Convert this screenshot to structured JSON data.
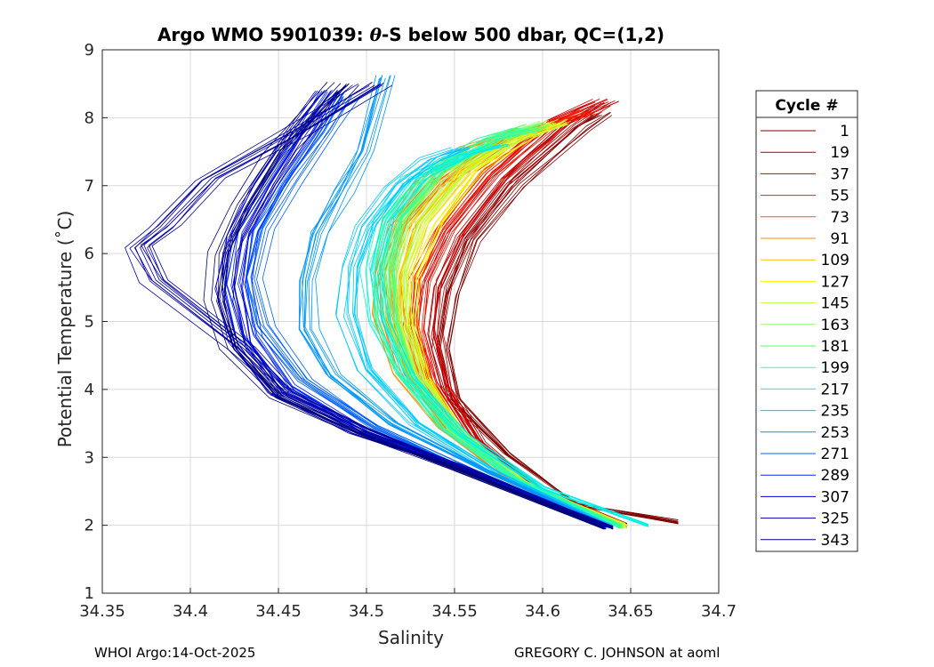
{
  "chart_data": {
    "type": "line",
    "title_prefix": "Argo WMO 5901039: ",
    "title_theta": "θ",
    "title_suffix": "-S below 500 dbar,  QC=(1,2)",
    "xlabel": "Salinity",
    "ylabel": "Potential Temperature (˚C)",
    "xlim": [
      34.35,
      34.7
    ],
    "ylim": [
      1,
      9
    ],
    "x_ticks": [
      34.35,
      34.4,
      34.45,
      34.5,
      34.55,
      34.6,
      34.65,
      34.7
    ],
    "x_tick_labels": [
      "34.35",
      "34.4",
      "34.45",
      "34.5",
      "34.55",
      "34.6",
      "34.65",
      "34.7"
    ],
    "y_ticks": [
      1,
      2,
      3,
      4,
      5,
      6,
      7,
      8,
      9
    ],
    "y_tick_labels": [
      "1",
      "2",
      "3",
      "4",
      "5",
      "6",
      "7",
      "8",
      "9"
    ],
    "grid": true,
    "legend": {
      "title": "Cycle #",
      "position": "right-outside",
      "entries": [
        {
          "label": "1",
          "color": "#800000"
        },
        {
          "label": "19",
          "color": "#b00000"
        },
        {
          "label": "37",
          "color": "#d40000"
        },
        {
          "label": "55",
          "color": "#ff1f00"
        },
        {
          "label": "73",
          "color": "#ff5500"
        },
        {
          "label": "91",
          "color": "#ff8a00"
        },
        {
          "label": "109",
          "color": "#ffbf00"
        },
        {
          "label": "127",
          "color": "#f4f400"
        },
        {
          "label": "145",
          "color": "#c2ff3c"
        },
        {
          "label": "163",
          "color": "#8cff72"
        },
        {
          "label": "181",
          "color": "#5aff5a"
        },
        {
          "label": "199",
          "color": "#2effb0"
        },
        {
          "label": "217",
          "color": "#00f0e6"
        },
        {
          "label": "235",
          "color": "#00c8ff"
        },
        {
          "label": "253",
          "color": "#0096ff"
        },
        {
          "label": "271",
          "color": "#0060ff"
        },
        {
          "label": "289",
          "color": "#0028ff"
        },
        {
          "label": "307",
          "color": "#0000d2"
        },
        {
          "label": "325",
          "color": "#0000a0"
        },
        {
          "label": "343",
          "color": "#000078"
        }
      ]
    },
    "series": [
      {
        "name": "1",
        "color": "#800000",
        "points": [
          [
            34.677,
            2.05
          ],
          [
            34.62,
            2.3
          ],
          [
            34.58,
            3.05
          ],
          [
            34.55,
            3.85
          ],
          [
            34.543,
            4.6
          ],
          [
            34.548,
            5.4
          ],
          [
            34.56,
            6.2
          ],
          [
            34.585,
            7.0
          ],
          [
            34.622,
            7.85
          ],
          [
            34.635,
            8.05
          ]
        ]
      },
      {
        "name": "19",
        "color": "#b00000",
        "points": [
          [
            34.648,
            2.0
          ],
          [
            34.6,
            2.5
          ],
          [
            34.565,
            3.2
          ],
          [
            34.545,
            4.0
          ],
          [
            34.537,
            4.8
          ],
          [
            34.54,
            5.5
          ],
          [
            34.553,
            6.25
          ],
          [
            34.578,
            7.1
          ],
          [
            34.612,
            7.9
          ],
          [
            34.632,
            8.2
          ]
        ]
      },
      {
        "name": "37",
        "color": "#d40000",
        "points": [
          [
            34.645,
            2.0
          ],
          [
            34.595,
            2.55
          ],
          [
            34.56,
            3.3
          ],
          [
            34.542,
            4.1
          ],
          [
            34.533,
            4.9
          ],
          [
            34.536,
            5.6
          ],
          [
            34.55,
            6.35
          ],
          [
            34.575,
            7.15
          ],
          [
            34.61,
            7.95
          ],
          [
            34.638,
            8.25
          ]
        ]
      },
      {
        "name": "55",
        "color": "#ff1f00",
        "points": [
          [
            34.643,
            2.0
          ],
          [
            34.59,
            2.6
          ],
          [
            34.555,
            3.35
          ],
          [
            34.537,
            4.1
          ],
          [
            34.529,
            4.9
          ],
          [
            34.531,
            5.6
          ],
          [
            34.545,
            6.35
          ],
          [
            34.57,
            7.2
          ],
          [
            34.605,
            7.9
          ],
          [
            34.628,
            8.1
          ]
        ]
      },
      {
        "name": "73",
        "color": "#ff5500",
        "points": [
          [
            34.645,
            2.0
          ],
          [
            34.585,
            2.65
          ],
          [
            34.548,
            3.4
          ],
          [
            34.525,
            4.2
          ],
          [
            34.515,
            5.0
          ],
          [
            34.512,
            5.7
          ],
          [
            34.52,
            6.35
          ],
          [
            34.54,
            7.0
          ],
          [
            34.572,
            7.6
          ],
          [
            34.6,
            7.85
          ]
        ]
      },
      {
        "name": "91",
        "color": "#ff8a00",
        "points": [
          [
            34.643,
            2.0
          ],
          [
            34.58,
            2.7
          ],
          [
            34.543,
            3.45
          ],
          [
            34.52,
            4.25
          ],
          [
            34.51,
            5.1
          ],
          [
            34.51,
            5.8
          ],
          [
            34.518,
            6.45
          ],
          [
            34.535,
            7.05
          ],
          [
            34.56,
            7.55
          ],
          [
            34.59,
            7.85
          ]
        ]
      },
      {
        "name": "109",
        "color": "#ffbf00",
        "points": [
          [
            34.646,
            2.0
          ],
          [
            34.588,
            2.65
          ],
          [
            34.55,
            3.4
          ],
          [
            34.53,
            4.2
          ],
          [
            34.52,
            5.0
          ],
          [
            34.522,
            5.75
          ],
          [
            34.532,
            6.45
          ],
          [
            34.555,
            7.2
          ],
          [
            34.585,
            7.7
          ],
          [
            34.605,
            7.9
          ]
        ]
      },
      {
        "name": "127",
        "color": "#f4f400",
        "points": [
          [
            34.647,
            2.0
          ],
          [
            34.59,
            2.62
          ],
          [
            34.553,
            3.38
          ],
          [
            34.533,
            4.15
          ],
          [
            34.524,
            4.95
          ],
          [
            34.526,
            5.7
          ],
          [
            34.538,
            6.45
          ],
          [
            34.562,
            7.25
          ],
          [
            34.592,
            7.75
          ],
          [
            34.61,
            7.95
          ]
        ]
      },
      {
        "name": "145",
        "color": "#c2ff3c",
        "points": [
          [
            34.648,
            1.98
          ],
          [
            34.59,
            2.62
          ],
          [
            34.552,
            3.38
          ],
          [
            34.53,
            4.15
          ],
          [
            34.52,
            4.95
          ],
          [
            34.518,
            5.7
          ],
          [
            34.528,
            6.45
          ],
          [
            34.552,
            7.2
          ],
          [
            34.585,
            7.7
          ],
          [
            34.608,
            7.9
          ]
        ]
      },
      {
        "name": "163",
        "color": "#8cff72",
        "points": [
          [
            34.646,
            1.98
          ],
          [
            34.588,
            2.64
          ],
          [
            34.549,
            3.4
          ],
          [
            34.527,
            4.2
          ],
          [
            34.516,
            5.0
          ],
          [
            34.514,
            5.75
          ],
          [
            34.522,
            6.5
          ],
          [
            34.545,
            7.25
          ],
          [
            34.578,
            7.75
          ],
          [
            34.6,
            7.92
          ]
        ]
      },
      {
        "name": "181",
        "color": "#5aff5a",
        "points": [
          [
            34.645,
            1.98
          ],
          [
            34.586,
            2.66
          ],
          [
            34.546,
            3.42
          ],
          [
            34.523,
            4.22
          ],
          [
            34.512,
            5.0
          ],
          [
            34.51,
            5.75
          ],
          [
            34.517,
            6.5
          ],
          [
            34.54,
            7.2
          ],
          [
            34.575,
            7.7
          ],
          [
            34.598,
            7.88
          ]
        ]
      },
      {
        "name": "199",
        "color": "#2effb0",
        "points": [
          [
            34.644,
            1.98
          ],
          [
            34.584,
            2.67
          ],
          [
            34.544,
            3.44
          ],
          [
            34.52,
            4.25
          ],
          [
            34.509,
            5.05
          ],
          [
            34.507,
            5.8
          ],
          [
            34.514,
            6.5
          ],
          [
            34.535,
            7.2
          ],
          [
            34.568,
            7.68
          ],
          [
            34.59,
            7.82
          ]
        ]
      },
      {
        "name": "217",
        "color": "#00f0e6",
        "points": [
          [
            34.66,
            2.0
          ],
          [
            34.6,
            2.55
          ],
          [
            34.556,
            3.3
          ],
          [
            34.525,
            4.15
          ],
          [
            34.508,
            5.0
          ],
          [
            34.503,
            5.75
          ],
          [
            34.51,
            6.5
          ],
          [
            34.528,
            7.1
          ],
          [
            34.555,
            7.45
          ],
          [
            34.575,
            7.6
          ]
        ]
      },
      {
        "name": "235",
        "color": "#00c8ff",
        "points": [
          [
            34.64,
            1.98
          ],
          [
            34.575,
            2.75
          ],
          [
            34.528,
            3.5
          ],
          [
            34.5,
            4.3
          ],
          [
            34.49,
            5.1
          ],
          [
            34.492,
            5.8
          ],
          [
            34.5,
            6.4
          ],
          [
            34.517,
            7.0
          ],
          [
            34.538,
            7.4
          ],
          [
            34.555,
            7.55
          ]
        ]
      },
      {
        "name": "253",
        "color": "#0096ff",
        "points": [
          [
            34.638,
            1.98
          ],
          [
            34.568,
            2.8
          ],
          [
            34.515,
            3.5
          ],
          [
            34.48,
            4.2
          ],
          [
            34.465,
            4.9
          ],
          [
            34.465,
            5.6
          ],
          [
            34.472,
            6.3
          ],
          [
            34.485,
            6.9
          ],
          [
            34.498,
            7.5
          ],
          [
            34.51,
            8.6
          ]
        ]
      },
      {
        "name": "271",
        "color": "#0060ff",
        "points": [
          [
            34.637,
            1.98
          ],
          [
            34.56,
            2.8
          ],
          [
            34.505,
            3.45
          ],
          [
            34.465,
            4.15
          ],
          [
            34.442,
            4.95
          ],
          [
            34.436,
            5.65
          ],
          [
            34.442,
            6.35
          ],
          [
            34.458,
            7.05
          ],
          [
            34.478,
            7.8
          ],
          [
            34.49,
            8.3
          ]
        ]
      },
      {
        "name": "289",
        "color": "#0028ff",
        "points": [
          [
            34.636,
            1.98
          ],
          [
            34.555,
            2.82
          ],
          [
            34.498,
            3.4
          ],
          [
            34.455,
            4.05
          ],
          [
            34.433,
            4.8
          ],
          [
            34.426,
            5.55
          ],
          [
            34.432,
            6.3
          ],
          [
            34.447,
            7.0
          ],
          [
            34.467,
            7.8
          ],
          [
            34.482,
            8.4
          ]
        ]
      },
      {
        "name": "307",
        "color": "#0000d2",
        "points": [
          [
            34.636,
            1.97
          ],
          [
            34.552,
            2.84
          ],
          [
            34.492,
            3.38
          ],
          [
            34.448,
            3.95
          ],
          [
            34.427,
            4.7
          ],
          [
            34.42,
            5.5
          ],
          [
            34.425,
            6.25
          ],
          [
            34.44,
            7.0
          ],
          [
            34.46,
            7.8
          ],
          [
            34.477,
            8.4
          ]
        ]
      },
      {
        "name": "325",
        "color": "#0000a0",
        "points": [
          [
            34.64,
            1.97
          ],
          [
            34.555,
            2.85
          ],
          [
            34.5,
            3.4
          ],
          [
            34.455,
            3.95
          ],
          [
            34.43,
            4.6
          ],
          [
            34.38,
            5.6
          ],
          [
            34.37,
            6.1
          ],
          [
            34.385,
            6.4
          ],
          [
            34.41,
            7.1
          ],
          [
            34.46,
            7.8
          ],
          [
            34.505,
            8.5
          ]
        ]
      },
      {
        "name": "343",
        "color": "#000078",
        "points": [
          [
            34.635,
            1.97
          ],
          [
            34.548,
            2.86
          ],
          [
            34.494,
            3.36
          ],
          [
            34.45,
            3.9
          ],
          [
            34.424,
            4.6
          ],
          [
            34.415,
            5.3
          ],
          [
            34.418,
            6.0
          ],
          [
            34.43,
            6.7
          ],
          [
            34.45,
            7.5
          ],
          [
            34.475,
            8.2
          ],
          [
            34.487,
            8.5
          ]
        ]
      }
    ]
  },
  "footer": {
    "left": "WHOI Argo:14-Oct-2025",
    "right": "GREGORY C. JOHNSON at aoml"
  }
}
